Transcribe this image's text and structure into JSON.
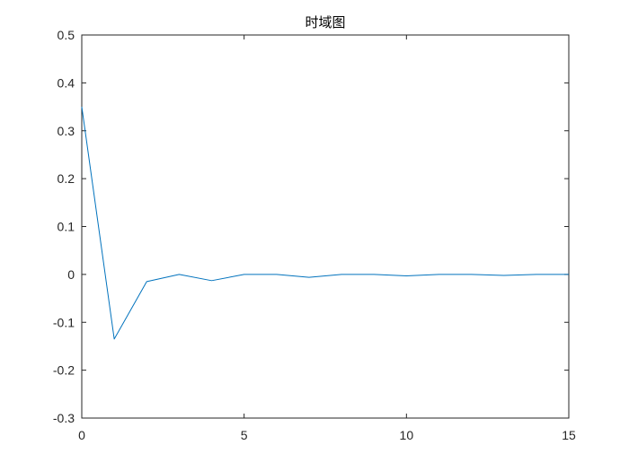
{
  "chart_data": {
    "type": "line",
    "title": "时域图",
    "xlabel": "",
    "ylabel": "",
    "xlim": [
      0,
      15
    ],
    "ylim": [
      -0.3,
      0.5
    ],
    "xticks": [
      0,
      5,
      10,
      15
    ],
    "xtick_labels": [
      "0",
      "5",
      "10",
      "15"
    ],
    "yticks": [
      0.5,
      0.4,
      0.3,
      0.2,
      0.1,
      0,
      -0.1,
      -0.2,
      -0.3
    ],
    "ytick_labels": [
      "0.5",
      "0.4",
      "0.3",
      "0.2",
      "0.1",
      "0",
      "-0.1",
      "-0.2",
      "-0.3"
    ],
    "grid": false,
    "box": true,
    "series": [
      {
        "color": "#0072BD",
        "x": [
          0,
          1,
          2,
          3,
          4,
          5,
          6,
          7,
          8,
          9,
          10,
          11,
          12,
          13,
          14,
          15
        ],
        "y": [
          0.35,
          -0.135,
          -0.015,
          0.0,
          -0.013,
          0.0,
          0.0,
          -0.006,
          0.0,
          0.0,
          -0.003,
          0.0,
          0.0,
          -0.002,
          0.0,
          0.0
        ]
      }
    ]
  }
}
